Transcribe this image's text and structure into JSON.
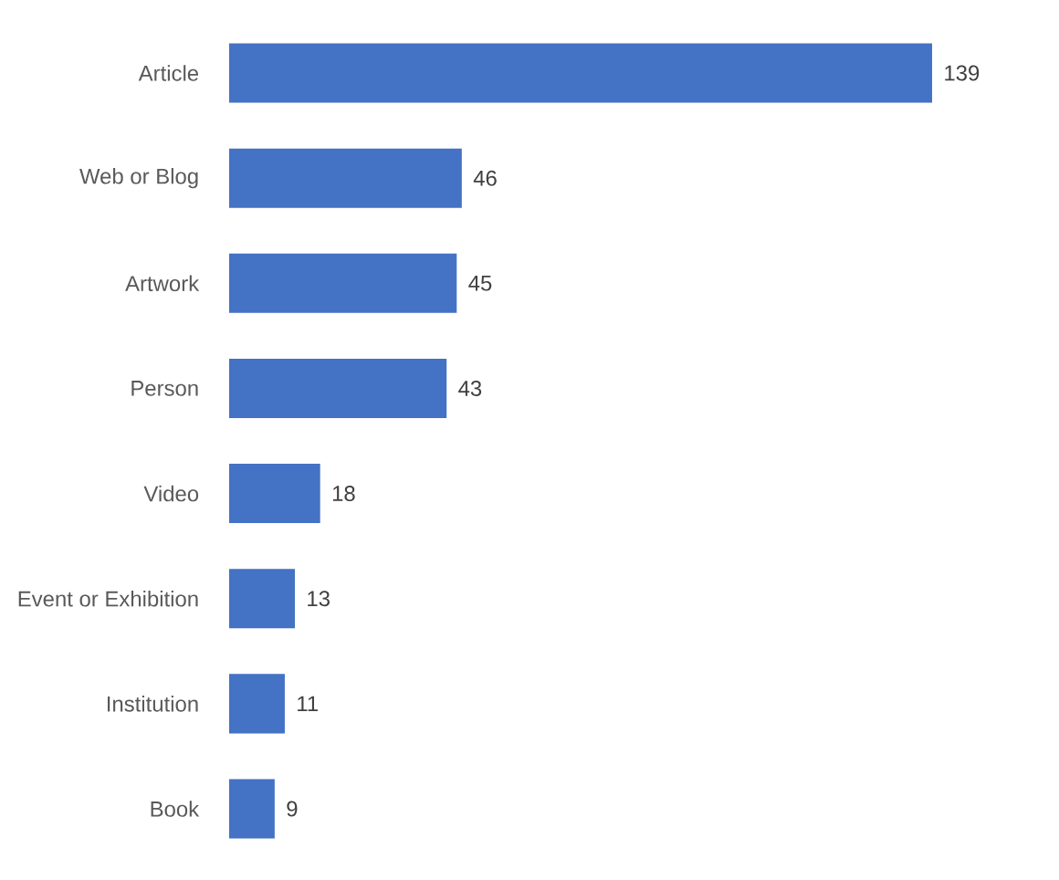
{
  "chart_data": {
    "type": "bar",
    "orientation": "horizontal",
    "categories": [
      "Article",
      "Web or Blog",
      "Artwork",
      "Person",
      "Video",
      "Event or Exhibition",
      "Institution",
      "Book"
    ],
    "values": [
      139,
      46,
      45,
      43,
      18,
      13,
      11,
      9
    ],
    "color": "#4472c4",
    "data_labels": true
  }
}
